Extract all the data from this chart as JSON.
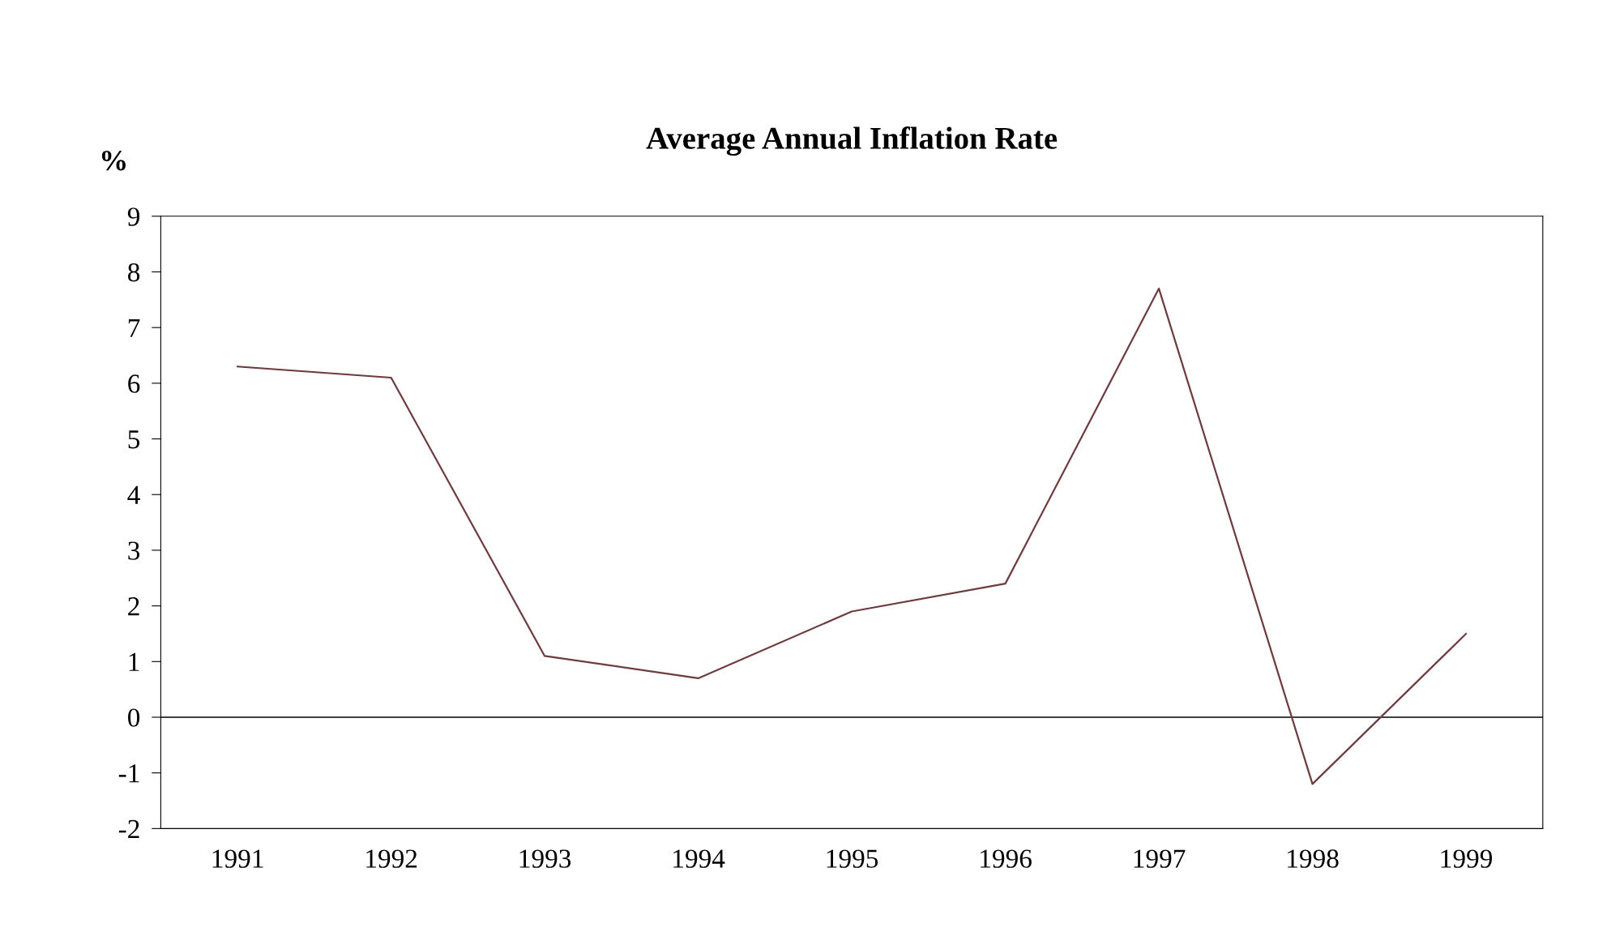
{
  "chart_data": {
    "type": "line",
    "title": "Average Annual Inflation Rate",
    "ylabel": "%",
    "categories": [
      "1991",
      "1992",
      "1993",
      "1994",
      "1995",
      "1996",
      "1997",
      "1998",
      "1999"
    ],
    "series": [
      {
        "color": "#6e3b3f",
        "values": [
          6.3,
          6.1,
          1.1,
          0.7,
          1.9,
          2.4,
          7.7,
          -1.2,
          1.5
        ]
      }
    ],
    "ylim": [
      -2,
      9
    ],
    "yticks": [
      -2,
      -1,
      0,
      1,
      2,
      3,
      4,
      5,
      6,
      7,
      8,
      9
    ],
    "ref_lines": [
      {
        "axis": "y",
        "value": 0,
        "color": "#000000"
      }
    ],
    "grid": false,
    "legend": false,
    "marker": "none",
    "line_style": "solid"
  }
}
